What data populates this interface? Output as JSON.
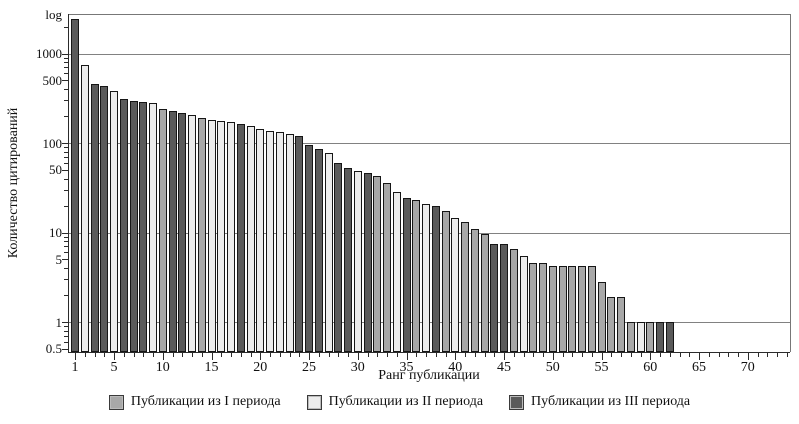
{
  "chart_data": {
    "type": "bar",
    "title": "",
    "ylabel": "Количество цитирований",
    "xlabel": "Ранг публикации",
    "y_scale": "log",
    "y_top_label": "log",
    "ylim": [
      0.46,
      2750
    ],
    "xlim": [
      0,
      74.5
    ],
    "grid": "horizontal at powers of 10",
    "legend_position": "bottom-center",
    "y_major_ticks": [
      {
        "value": 1000,
        "label": "1000",
        "grid": true
      },
      {
        "value": 500,
        "label": "500",
        "grid": false
      },
      {
        "value": 100,
        "label": "100",
        "grid": true
      },
      {
        "value": 50,
        "label": "50",
        "grid": false
      },
      {
        "value": 10,
        "label": "10",
        "grid": true
      },
      {
        "value": 5,
        "label": "5",
        "grid": false
      },
      {
        "value": 1,
        "label": "1",
        "grid": true
      },
      {
        "value": 0.5,
        "label": "0.5",
        "grid": false
      }
    ],
    "x_tick_labels": [
      1,
      5,
      10,
      15,
      20,
      25,
      30,
      35,
      40,
      45,
      50,
      55,
      60,
      65,
      70
    ],
    "x_minor_tick_every": 1,
    "x_axis_max_rank": 74,
    "series": [
      {
        "name": "Публикации из I периода",
        "color": "#a8a8a8"
      },
      {
        "name": "Публикации из II периода",
        "color": "#ececec"
      },
      {
        "name": "Публикации из III периода",
        "color": "#5a5a5a"
      }
    ],
    "points_format": [
      "rank",
      "citations",
      "series_index_1_based"
    ],
    "points": [
      [
        1,
        2400,
        3
      ],
      [
        2,
        750,
        2
      ],
      [
        3,
        460,
        3
      ],
      [
        4,
        430,
        3
      ],
      [
        5,
        380,
        2
      ],
      [
        6,
        310,
        3
      ],
      [
        7,
        295,
        3
      ],
      [
        8,
        290,
        3
      ],
      [
        9,
        280,
        2
      ],
      [
        10,
        240,
        1
      ],
      [
        11,
        228,
        3
      ],
      [
        12,
        216,
        3
      ],
      [
        13,
        205,
        2
      ],
      [
        14,
        190,
        1
      ],
      [
        15,
        182,
        2
      ],
      [
        16,
        176,
        2
      ],
      [
        17,
        170,
        2
      ],
      [
        18,
        163,
        3
      ],
      [
        19,
        154,
        2
      ],
      [
        20,
        143,
        2
      ],
      [
        21,
        136,
        2
      ],
      [
        22,
        132,
        2
      ],
      [
        23,
        126,
        2
      ],
      [
        24,
        120,
        3
      ],
      [
        25,
        95,
        3
      ],
      [
        26,
        86,
        3
      ],
      [
        27,
        77,
        2
      ],
      [
        28,
        60,
        3
      ],
      [
        29,
        53,
        3
      ],
      [
        30,
        49,
        2
      ],
      [
        31,
        46,
        3
      ],
      [
        32,
        43,
        1
      ],
      [
        33,
        36,
        1
      ],
      [
        34,
        28,
        2
      ],
      [
        35,
        24,
        3
      ],
      [
        36,
        23,
        1
      ],
      [
        37,
        21,
        2
      ],
      [
        38,
        20,
        3
      ],
      [
        39,
        17.5,
        1
      ],
      [
        40,
        14.5,
        2
      ],
      [
        41,
        13,
        1
      ],
      [
        42,
        11,
        1
      ],
      [
        43,
        9.7,
        1
      ],
      [
        44,
        7.5,
        3
      ],
      [
        45,
        7.5,
        3
      ],
      [
        46,
        6.6,
        1
      ],
      [
        47,
        5.5,
        2
      ],
      [
        48,
        4.6,
        1
      ],
      [
        49,
        4.6,
        1
      ],
      [
        50,
        4.2,
        1
      ],
      [
        51,
        4.2,
        1
      ],
      [
        52,
        4.2,
        1
      ],
      [
        53,
        4.2,
        1
      ],
      [
        54,
        4.2,
        1
      ],
      [
        55,
        2.8,
        1
      ],
      [
        56,
        1.9,
        1
      ],
      [
        57,
        1.9,
        1
      ],
      [
        58,
        1,
        1
      ],
      [
        59,
        1,
        2
      ],
      [
        60,
        1,
        1
      ],
      [
        61,
        1,
        3
      ],
      [
        62,
        1,
        3
      ]
    ]
  }
}
